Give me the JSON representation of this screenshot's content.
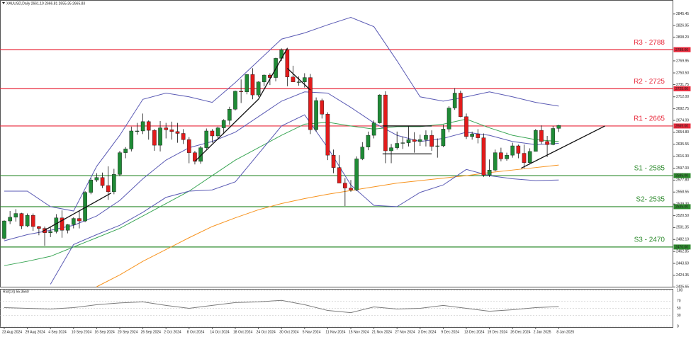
{
  "chart_data": {
    "type": "candlestick",
    "subtitle": "XAUUSD,Daily  2661.10 2666.81 2655.35 2665.83",
    "categories": [
      "23 Aug 2024",
      null,
      null,
      null,
      "29 Aug 2024",
      null,
      null,
      null,
      "4 Sep 2024",
      null,
      null,
      null,
      "10 Sep 2024",
      null,
      null,
      null,
      "16 Sep 2024",
      null,
      null,
      null,
      "20 Sep 2024",
      null,
      null,
      null,
      "26 Sep 2024",
      null,
      null,
      null,
      "2 Oct 2024",
      null,
      null,
      null,
      "8 Oct 2024",
      null,
      null,
      null,
      "14 Oct 2024",
      null,
      null,
      null,
      "18 Oct 2024",
      null,
      null,
      null,
      "24 Oct 2024",
      null,
      null,
      null,
      "30 Oct 2024",
      null,
      null,
      null,
      "5 Nov 2024",
      null,
      null,
      null,
      "11 Nov 2024",
      null,
      null,
      null,
      "15 Nov 2024",
      null,
      null,
      null,
      "21 Nov 2024",
      null,
      null,
      null,
      "27 Nov 2024",
      null,
      null,
      null,
      "3 Dec 2024",
      null,
      null,
      null,
      "9 Dec 2024",
      null,
      null,
      null,
      "13 Dec 2024",
      null,
      null,
      null,
      "19 Dec 2024",
      null,
      null,
      null,
      "26 Dec 2024",
      null,
      null,
      null,
      "2 Jan 2025",
      null,
      null,
      null,
      "8 Jan 2025"
    ],
    "open": [
      2484,
      2512,
      2518,
      2524,
      2504,
      2521,
      2503,
      2500,
      2493,
      2495,
      2517,
      2497,
      2506,
      2516,
      2512,
      2558,
      2578,
      2582,
      2569,
      2559,
      2587,
      2622,
      2628,
      2657,
      2657,
      2672,
      2658,
      2634,
      2662,
      2659,
      2656,
      2653,
      2643,
      2622,
      2608,
      2630,
      2657,
      2649,
      2662,
      2674,
      2692,
      2721,
      2720,
      2748,
      2715,
      2736,
      2747,
      2743,
      2774,
      2788,
      2744,
      2736,
      2736,
      2743,
      2659,
      2706,
      2684,
      2618,
      2598,
      2573,
      2565,
      2562,
      2612,
      2631,
      2650,
      2670,
      2715,
      2625,
      2630,
      2637,
      2638,
      2643,
      2640,
      2643,
      2650,
      2632,
      2633,
      2660,
      2694,
      2718,
      2680,
      2648,
      2652,
      2646,
      2586,
      2594,
      2622,
      2612,
      2618,
      2633,
      2621,
      2606,
      2624,
      2658,
      2640,
      2635,
      2661.1
    ],
    "high": [
      2513,
      2528,
      2531,
      2525,
      2524,
      2524,
      2504,
      2503,
      2503,
      2523,
      2529,
      2507,
      2518,
      2528,
      2560,
      2581,
      2589,
      2590,
      2600,
      2596,
      2625,
      2631,
      2664,
      2670,
      2685,
      2674,
      2660,
      2673,
      2670,
      2672,
      2670,
      2660,
      2647,
      2625,
      2633,
      2661,
      2660,
      2664,
      2676,
      2696,
      2722,
      2740,
      2749,
      2758,
      2737,
      2748,
      2750,
      2775,
      2790,
      2791,
      2762,
      2745,
      2750,
      2749,
      2711,
      2709,
      2687,
      2627,
      2618,
      2581,
      2578,
      2616,
      2639,
      2656,
      2674,
      2716,
      2721,
      2636,
      2656,
      2648,
      2665,
      2655,
      2651,
      2658,
      2658,
      2645,
      2667,
      2697,
      2726,
      2722,
      2685,
      2656,
      2660,
      2653,
      2611,
      2627,
      2630,
      2622,
      2638,
      2635,
      2635,
      2629,
      2660,
      2666,
      2649,
      2665,
      2666.81
    ],
    "low": [
      2482,
      2507,
      2511,
      2499,
      2502,
      2496,
      2489,
      2472,
      2486,
      2492,
      2485,
      2492,
      2500,
      2500,
      2510,
      2555,
      2575,
      2565,
      2546,
      2555,
      2584,
      2613,
      2624,
      2651,
      2652,
      2643,
      2625,
      2624,
      2645,
      2643,
      2638,
      2636,
      2605,
      2603,
      2604,
      2628,
      2638,
      2643,
      2652,
      2667,
      2690,
      2702,
      2716,
      2708,
      2712,
      2729,
      2731,
      2737,
      2770,
      2729,
      2737,
      2730,
      2727,
      2652,
      2656,
      2677,
      2610,
      2589,
      2573,
      2536,
      2559,
      2560,
      2610,
      2626,
      2645,
      2669,
      2605,
      2605,
      2627,
      2628,
      2632,
      2622,
      2633,
      2632,
      2625,
      2614,
      2631,
      2655,
      2691,
      2679,
      2644,
      2643,
      2637,
      2583,
      2583,
      2592,
      2608,
      2609,
      2614,
      2613,
      2597,
      2603,
      2624,
      2636,
      2615,
      2634,
      2655.35
    ],
    "close": [
      2512,
      2518,
      2524,
      2504,
      2521,
      2503,
      2500,
      2493,
      2495,
      2517,
      2497,
      2506,
      2516,
      2512,
      2558,
      2578,
      2582,
      2569,
      2559,
      2587,
      2622,
      2628,
      2657,
      2657,
      2672,
      2658,
      2634,
      2662,
      2659,
      2656,
      2653,
      2643,
      2622,
      2608,
      2630,
      2657,
      2649,
      2662,
      2674,
      2692,
      2721,
      2720,
      2748,
      2715,
      2736,
      2747,
      2743,
      2774,
      2788,
      2744,
      2736,
      2736,
      2743,
      2659,
      2706,
      2684,
      2618,
      2598,
      2573,
      2565,
      2562,
      2612,
      2631,
      2650,
      2670,
      2715,
      2625,
      2630,
      2637,
      2638,
      2643,
      2640,
      2643,
      2650,
      2632,
      2633,
      2660,
      2694,
      2718,
      2680,
      2648,
      2652,
      2646,
      2586,
      2594,
      2622,
      2612,
      2618,
      2633,
      2621,
      2606,
      2624,
      2658,
      2640,
      2635,
      2661,
      2665.83
    ],
    "up_color": "#1f8b36",
    "down_color": "#e21b1b",
    "ylim": [
      2406,
      2868
    ],
    "yticks": [
      {
        "value": 2405.65,
        "label": "2405.65"
      },
      2424.35,
      {
        "value": 2443.6,
        "label": "2443.60"
      },
      2462.85,
      {
        "value": 2482.1,
        "label": "2482.10"
      },
      2501.35,
      {
        "value": 2520.5,
        "label": "2520.50"
      },
      {
        "value": 2539.3,
        "label": "2539.30"
      },
      2558.55,
      {
        "value": 2577.8,
        "label": "2577.80"
      },
      {
        "value": 2597,
        "label": "2597.00"
      },
      {
        "value": 2616.3,
        "label": "2616.30"
      },
      2635.55,
      {
        "value": 2654.8,
        "label": "2654.80"
      },
      {
        "value": 2674,
        "label": "2674.00"
      },
      2692.75,
      {
        "value": 2712,
        "label": "2712.00"
      },
      2731.75,
      {
        "value": 2750.5,
        "label": "2750.50"
      },
      2769.95,
      {
        "value": 2808.2,
        "label": "2808.20"
      },
      2826.95,
      2845.45
    ],
    "grid": false,
    "levels": [
      {
        "label": "R3 - 2788",
        "value": 2788,
        "value_label": "2788.00",
        "color": "#e8283a"
      },
      {
        "label": "R2 - 2725",
        "value": 2725,
        "value_label": "2725.00",
        "color": "#e8283a"
      },
      {
        "label": "R1 - 2665",
        "value": 2665,
        "value_label": "2665.00",
        "color": "#e8283a"
      },
      {
        "label": "S1 - 2585",
        "value": 2585,
        "value_label": "2585.00",
        "color": "#2e8b2e"
      },
      {
        "label": "S2- 2535",
        "value": 2535,
        "value_label": "2535.00",
        "color": "#2e8b2e"
      },
      {
        "label": "S3 - 2470",
        "value": 2470,
        "value_label": "2470.00",
        "color": "#2e8b2e"
      }
    ],
    "overlays": [
      {
        "color": "#3aa655",
        "x": [
          0,
          4,
          8,
          12,
          16,
          20,
          24,
          28,
          32,
          36,
          40,
          44,
          48,
          52,
          56,
          60,
          64,
          68,
          72,
          76,
          80,
          84,
          88,
          92,
          96
        ],
        "values": [
          2440,
          2447,
          2455,
          2470,
          2485,
          2500,
          2520,
          2540,
          2560,
          2585,
          2610,
          2630,
          2650,
          2668,
          2671,
          2665,
          2660,
          2664,
          2664,
          2668,
          2676,
          2662,
          2650,
          2643,
          2640
        ]
      },
      {
        "color": "#f7931e",
        "x": [
          16,
          20,
          24,
          28,
          32,
          36,
          40,
          44,
          48,
          52,
          56,
          60,
          64,
          68,
          72,
          76,
          80,
          84,
          88,
          92,
          96
        ],
        "values": [
          2406,
          2425,
          2447,
          2466,
          2485,
          2503,
          2517,
          2530,
          2540,
          2548,
          2555,
          2561,
          2567,
          2573,
          2577,
          2581,
          2585,
          2590,
          2594,
          2598,
          2602
        ]
      },
      {
        "color": "#5a5ab4",
        "x": [
          0,
          4,
          8,
          12,
          16,
          20,
          24,
          28,
          32,
          36,
          40,
          44,
          48,
          52,
          56,
          60,
          64,
          68,
          72,
          76,
          80,
          84,
          88,
          92,
          96
        ],
        "values": [
          2560,
          2560,
          2535,
          2528,
          2600,
          2650,
          2708,
          2718,
          2712,
          2703,
          2735,
          2770,
          2805,
          2815,
          2828,
          2840,
          2825,
          2770,
          2712,
          2705,
          2712,
          2720,
          2712,
          2703,
          2697
        ]
      },
      {
        "color": "#5a5ab4",
        "x": [
          0,
          4,
          8,
          12,
          16,
          20,
          24,
          28,
          32,
          36,
          40,
          44,
          48,
          52,
          56,
          60,
          64,
          68,
          72,
          76,
          80,
          84,
          88,
          92,
          96
        ],
        "values": [
          2480,
          2490,
          2497,
          2505,
          2520,
          2545,
          2580,
          2610,
          2630,
          2640,
          2655,
          2680,
          2705,
          2720,
          2718,
          2695,
          2670,
          2650,
          2640,
          2645,
          2655,
          2650,
          2640,
          2635,
          2637
        ]
      },
      {
        "color": "#5a5ab4",
        "x": [
          8,
          12,
          16,
          20,
          24,
          28,
          32,
          36,
          40,
          44,
          48,
          52,
          56,
          60,
          64,
          68,
          72,
          76,
          80,
          84,
          88,
          92,
          96
        ],
        "values": [
          2410,
          2474,
          2490,
          2505,
          2526,
          2550,
          2560,
          2562,
          2575,
          2620,
          2665,
          2683,
          2630,
          2570,
          2537,
          2535,
          2558,
          2570,
          2595,
          2585,
          2580,
          2577,
          2578
        ]
      }
    ],
    "trendlines": [
      {
        "x": [
          6.6,
          18.5
        ],
        "values": [
          2495,
          2557
        ]
      },
      {
        "x": [
          33,
          44
        ],
        "values": [
          2608,
          2708
        ]
      },
      {
        "x": [
          44,
          49
        ],
        "values": [
          2708,
          2790
        ]
      },
      {
        "x": [
          49,
          53
        ],
        "values": [
          2758,
          2723
        ]
      },
      {
        "x": [
          65.5,
          74
        ],
        "values": [
          2665,
          2665
        ]
      },
      {
        "x": [
          65.5,
          74
        ],
        "values": [
          2620,
          2620
        ]
      },
      {
        "x": [
          89.5,
          104
        ],
        "values": [
          2597,
          2665
        ]
      }
    ],
    "rsi": {
      "label": "RSI(14) 55.3560",
      "color": "#7a7a7a",
      "ylim": [
        0,
        100
      ],
      "yticks": [
        100,
        70,
        50,
        30,
        0
      ],
      "x": [
        0,
        4,
        8,
        12,
        16,
        20,
        24,
        28,
        32,
        36,
        40,
        44,
        48,
        52,
        56,
        60,
        64,
        68,
        72,
        76,
        80,
        84,
        88,
        92,
        96
      ],
      "values": [
        52,
        50,
        48,
        52,
        60,
        65,
        68,
        58,
        50,
        58,
        66,
        68,
        72,
        60,
        44,
        38,
        54,
        48,
        50,
        58,
        50,
        42,
        46,
        52,
        55
      ]
    }
  }
}
